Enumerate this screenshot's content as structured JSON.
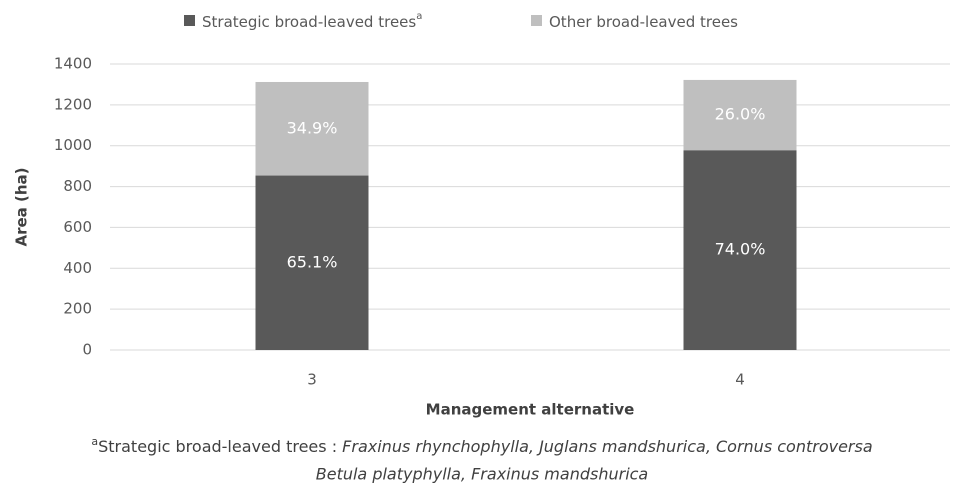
{
  "chart_data": {
    "type": "stacked_bar",
    "categories": [
      "3",
      "4"
    ],
    "series": [
      {
        "name": "Strategic broad-leaved trees",
        "color": "#595959",
        "values": [
          854,
          978
        ],
        "value_labels": [
          "65.1%",
          "74.0%"
        ]
      },
      {
        "name": "Other broad-leaved trees",
        "color": "#bfbfbf",
        "values": [
          458,
          344
        ],
        "value_labels": [
          "34.9%",
          "26.0%"
        ]
      }
    ],
    "legend_marker": "a",
    "ylabel": "Area (ha)",
    "xlabel": "Management alternative",
    "ylim": [
      0,
      1400
    ],
    "yticks": [
      0,
      200,
      400,
      600,
      800,
      1000,
      1200,
      1400
    ],
    "grid": true,
    "legend": "top",
    "footnote": {
      "marker": "a",
      "lead": "Strategic broad-leaved trees : ",
      "species_line1": "Fraxinus rhynchophylla, Juglans mandshurica, Cornus controversa",
      "species_line2": "Betula platyphylla, Fraxinus mandshurica"
    }
  }
}
